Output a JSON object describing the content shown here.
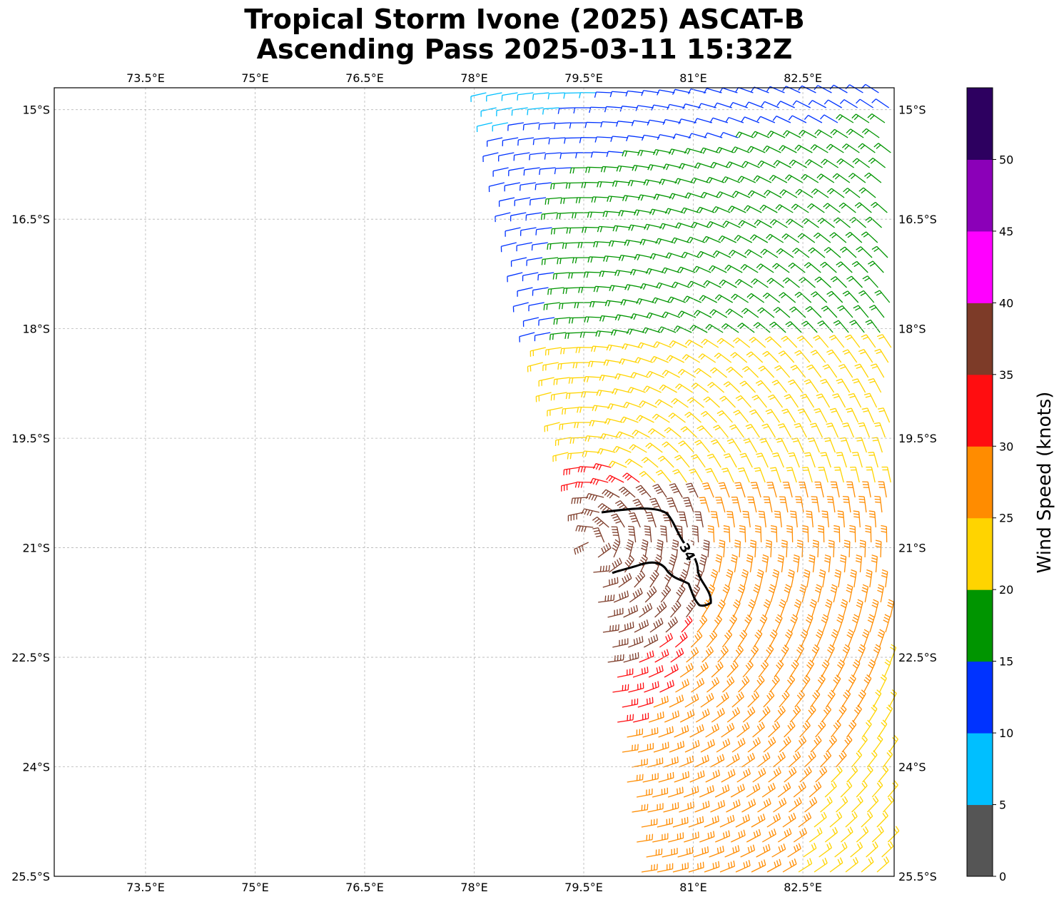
{
  "title": {
    "line1": "Tropical Storm Ivone (2025) ASCAT-B",
    "line2": "Ascending Pass 2025-03-11 15:32Z"
  },
  "map": {
    "lon_ticks": [
      "73.5°E",
      "75°E",
      "76.5°E",
      "78°E",
      "79.5°E",
      "81°E",
      "82.5°E"
    ],
    "lat_ticks": [
      "15°S",
      "16.5°S",
      "18°S",
      "19.5°S",
      "21°S",
      "22.5°S",
      "24°S",
      "25.5°S"
    ],
    "lon_range": [
      72.25,
      83.75
    ],
    "lat_range": [
      -14.7,
      -25.5
    ],
    "gridlines": true,
    "contour_label": "34"
  },
  "colorbar": {
    "label": "Wind Speed (knots)",
    "tick_labels": [
      "0",
      "5",
      "10",
      "15",
      "20",
      "25",
      "30",
      "35",
      "40",
      "45",
      "50"
    ],
    "bins": [
      {
        "min": 0,
        "max": 5,
        "color": "#555555"
      },
      {
        "min": 5,
        "max": 10,
        "color": "#00bfff"
      },
      {
        "min": 10,
        "max": 15,
        "color": "#0033ff"
      },
      {
        "min": 15,
        "max": 20,
        "color": "#009500"
      },
      {
        "min": 20,
        "max": 25,
        "color": "#ffd400"
      },
      {
        "min": 25,
        "max": 30,
        "color": "#ff8c00"
      },
      {
        "min": 30,
        "max": 35,
        "color": "#ff0d10"
      },
      {
        "min": 35,
        "max": 40,
        "color": "#7d3b28"
      },
      {
        "min": 40,
        "max": 45,
        "color": "#ff00ff"
      },
      {
        "min": 45,
        "max": 50,
        "color": "#8b00b8"
      },
      {
        "min": 50,
        "max": 55,
        "color": "#2d0060"
      }
    ]
  },
  "chart_data": {
    "type": "wind_barbs",
    "storm_center": {
      "lon": 79.6,
      "lat": -21.0
    },
    "wind_contour_kt": 34,
    "swath": {
      "west_edge_lon": [
        78.2,
        79.6
      ],
      "east_edge_lon": 83.75,
      "lat_range": [
        -14.7,
        -25.5
      ]
    }
  }
}
